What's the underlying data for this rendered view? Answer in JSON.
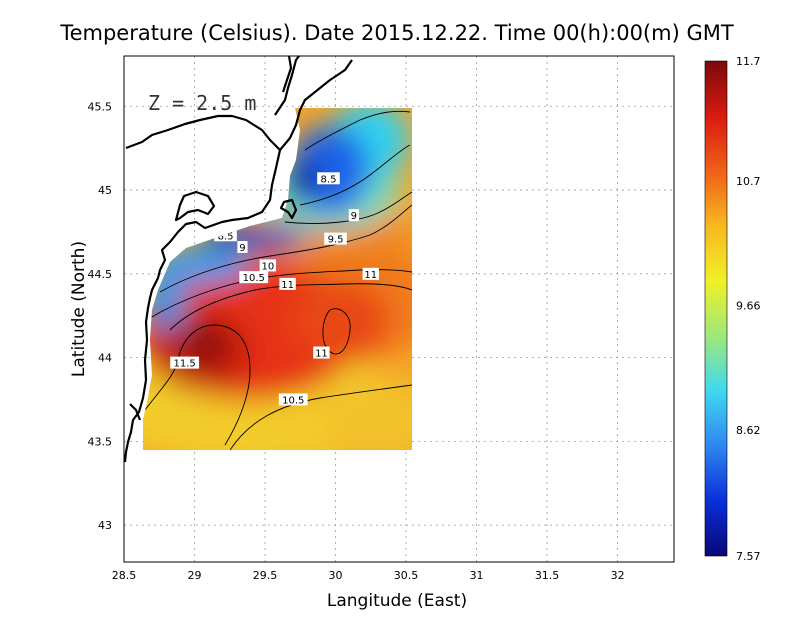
{
  "title": "Temperature (Celsius). Date 2015.12.22. Time 00(h):00(m) GMT",
  "depth_label": "Z = 2.5 m",
  "x_axis": {
    "label": "Langitude (East)",
    "range": [
      28.5,
      32.4
    ],
    "ticks": [
      "28.5",
      "29",
      "29.5",
      "30",
      "30.5",
      "31",
      "31.5",
      "32"
    ]
  },
  "y_axis": {
    "label": "Latitude (North)",
    "range": [
      42.78,
      45.8
    ],
    "ticks": [
      "43",
      "43.5",
      "44",
      "44.5",
      "45",
      "45.5"
    ]
  },
  "colorbar": {
    "ticks": [
      "11.7",
      "10.7",
      "9.66",
      "8.62",
      "7.57"
    ],
    "min": 7.57,
    "max": 11.7,
    "colors": [
      "#08087a",
      "#0a2fd8",
      "#2f86f0",
      "#3fd8f0",
      "#9ee87a",
      "#f0f028",
      "#f8b820",
      "#f06018",
      "#d81a10",
      "#7a0a0a"
    ]
  },
  "chart_data": {
    "type": "heatmap",
    "title": "Temperature (Celsius). Date 2015.12.22. Time 00(h):00(m) GMT",
    "xlabel": "Langitude (East)",
    "ylabel": "Latitude (North)",
    "xlim": [
      28.5,
      32.4
    ],
    "ylim": [
      42.78,
      45.8
    ],
    "value_range": [
      7.57,
      11.7
    ],
    "grid": true,
    "contour_labels": [
      {
        "text": "8.5",
        "lon": 29.95,
        "lat": 45.07
      },
      {
        "text": "9",
        "lon": 30.13,
        "lat": 44.85
      },
      {
        "text": "8.5",
        "lon": 29.22,
        "lat": 44.73
      },
      {
        "text": "9",
        "lon": 29.34,
        "lat": 44.66
      },
      {
        "text": "9.5",
        "lon": 30.0,
        "lat": 44.71
      },
      {
        "text": "10",
        "lon": 29.52,
        "lat": 44.55
      },
      {
        "text": "10.5",
        "lon": 29.42,
        "lat": 44.48
      },
      {
        "text": "11",
        "lon": 29.66,
        "lat": 44.44
      },
      {
        "text": "11",
        "lon": 30.25,
        "lat": 44.5
      },
      {
        "text": "11",
        "lon": 29.9,
        "lat": 44.03
      },
      {
        "text": "11.5",
        "lon": 28.93,
        "lat": 43.97
      },
      {
        "text": "10.5",
        "lon": 29.7,
        "lat": 43.75
      }
    ]
  }
}
